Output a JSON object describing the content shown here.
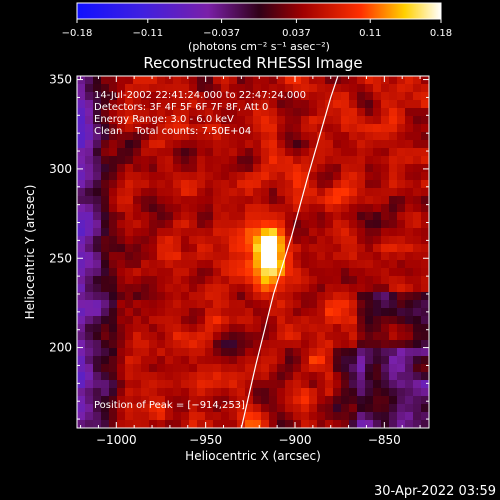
{
  "chart_data": {
    "type": "heatmap",
    "title": "Reconstructed RHESSI Image",
    "xlabel": "Heliocentric X (arcsec)",
    "ylabel": "Heliocentric Y (arcsec)",
    "xlim": [
      -1022,
      -825
    ],
    "ylim": [
      155,
      352
    ],
    "x_ticks": [
      -1000,
      -950,
      -900,
      -850
    ],
    "x_tick_labels": [
      "−1000",
      "−950",
      "−900",
      "−850"
    ],
    "y_ticks": [
      200,
      250,
      300,
      350
    ],
    "y_tick_labels": [
      "200",
      "250",
      "300",
      "350"
    ],
    "colorbar": {
      "range": [
        -0.18,
        0.18
      ],
      "ticks": [
        -0.18,
        -0.11,
        -0.037,
        0.037,
        0.11,
        0.18
      ],
      "tick_labels": [
        "−0.18",
        "−0.11",
        "−0.037",
        "0.037",
        "0.11",
        "0.18"
      ],
      "unit_label": "(photons cm⁻² s⁻¹ asec⁻²)",
      "colormap": "rainbow-purple-to-white"
    },
    "info_lines": [
      "14-Jul-2002 22:41:24.000 to 22:47:24.000",
      "Detectors: 3F 4F 5F 6F 7F 8F, Att 0",
      "Energy Range: 3.0 - 6.0 keV",
      "Clean    Total counts: 7.50E+04"
    ],
    "peak_label": "Position of Peak = [−914,253]",
    "peak": [
      -914,
      253
    ],
    "limb_curve": [
      [
        -930,
        155
      ],
      [
        -922,
        190
      ],
      [
        -912,
        230
      ],
      [
        -902,
        262
      ],
      [
        -893,
        295
      ],
      [
        -880,
        340
      ],
      [
        -876,
        352
      ]
    ],
    "grid": false
  },
  "footer": {
    "timestamp": "30-Apr-2022 03:59"
  }
}
